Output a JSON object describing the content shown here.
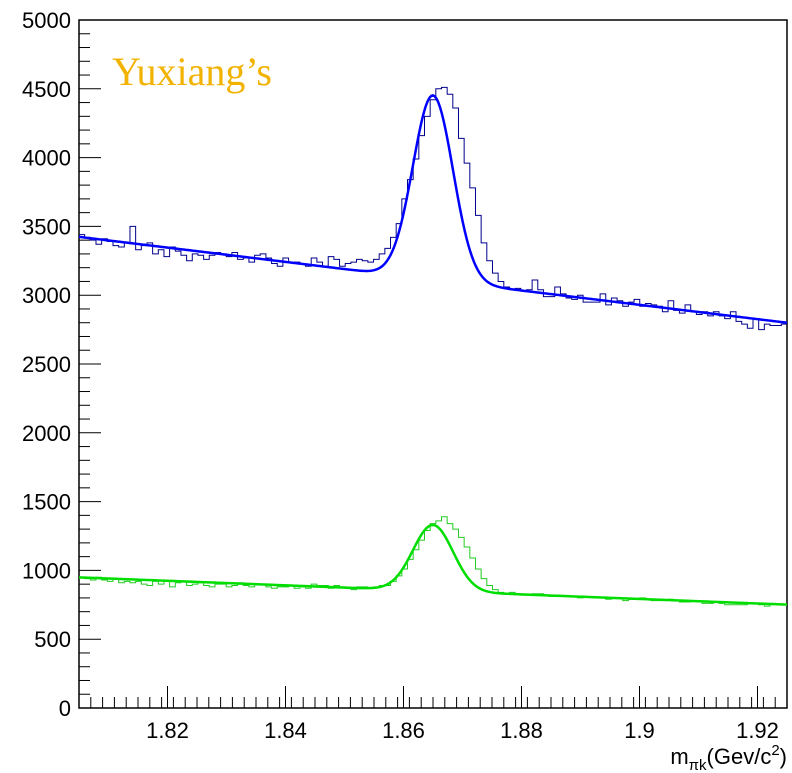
{
  "chart_data": {
    "type": "line",
    "watermark": "Yuxiang’s",
    "xlabel": {
      "main": "m",
      "sub": "πk",
      "unit_pre": "(Gev/c",
      "unit_sup": "2",
      "unit_post": ")"
    },
    "ylabel": "",
    "xlim": [
      1.805,
      1.925
    ],
    "ylim": [
      0,
      5000
    ],
    "x_ticks": [
      1.82,
      1.84,
      1.86,
      1.88,
      1.9,
      1.92
    ],
    "x_tick_labels": [
      "1.82",
      "1.84",
      "1.86",
      "1.88",
      "1.9",
      "1.92"
    ],
    "y_ticks": [
      0,
      500,
      1000,
      1500,
      2000,
      2500,
      3000,
      3500,
      4000,
      4500,
      5000
    ],
    "y_tick_labels": [
      "0",
      "500",
      "1000",
      "1500",
      "2000",
      "2500",
      "3000",
      "3500",
      "4000",
      "4500",
      "5000"
    ],
    "grid": false,
    "series": [
      {
        "color": "#0000ff",
        "hist_color": "#00008b",
        "fit": {
          "bg_a": 3190,
          "bg_b": -5200,
          "peak_amp": 1340,
          "mean": 1.865,
          "sigma": 0.0034
        },
        "hist_values": [
          3440,
          3420,
          3400,
          3370,
          3410,
          3390,
          3360,
          3350,
          3380,
          3500,
          3330,
          3360,
          3380,
          3300,
          3330,
          3280,
          3350,
          3320,
          3290,
          3250,
          3300,
          3290,
          3260,
          3290,
          3310,
          3300,
          3280,
          3310,
          3260,
          3270,
          3240,
          3290,
          3300,
          3270,
          3230,
          3210,
          3270,
          3240,
          3240,
          3230,
          3210,
          3270,
          3240,
          3210,
          3280,
          3260,
          3210,
          3230,
          3240,
          3260,
          3250,
          3240,
          3260,
          3300,
          3340,
          3420,
          3520,
          3700,
          3840,
          3990,
          4160,
          4300,
          4420,
          4500,
          4510,
          4460,
          4360,
          4140,
          3960,
          3780,
          3580,
          3380,
          3250,
          3160,
          3100,
          3060,
          3040,
          3050,
          3030,
          3040,
          3110,
          3040,
          2990,
          2990,
          3060,
          3010,
          2980,
          2970,
          3000,
          2950,
          2950,
          2950,
          3010,
          2930,
          2980,
          2960,
          2920,
          2950,
          2970,
          2920,
          2940,
          2930,
          2920,
          2880,
          2960,
          2890,
          2870,
          2930,
          2880,
          2860,
          2880,
          2850,
          2880,
          2850,
          2830,
          2880,
          2810,
          2790,
          2760,
          2830,
          2750,
          2790,
          2780,
          2780,
          2790
        ]
      },
      {
        "color": "#00dd00",
        "hist_color": "#22cc22",
        "fit": {
          "bg_a": 875,
          "bg_b": -1650,
          "peak_amp": 480,
          "mean": 1.865,
          "sigma": 0.0034
        },
        "hist_values": [
          950,
          940,
          930,
          950,
          930,
          920,
          940,
          910,
          920,
          910,
          920,
          900,
          890,
          920,
          900,
          920,
          880,
          910,
          920,
          890,
          900,
          910,
          890,
          880,
          900,
          900,
          880,
          890,
          910,
          890,
          880,
          900,
          900,
          880,
          870,
          880,
          880,
          890,
          870,
          880,
          870,
          900,
          890,
          890,
          870,
          890,
          880,
          870,
          860,
          880,
          880,
          870,
          880,
          890,
          890,
          920,
          960,
          1010,
          1080,
          1150,
          1220,
          1290,
          1340,
          1360,
          1390,
          1340,
          1300,
          1240,
          1170,
          1090,
          1010,
          940,
          890,
          860,
          840,
          830,
          840,
          830,
          820,
          820,
          830,
          830,
          820,
          810,
          820,
          810,
          810,
          810,
          800,
          810,
          810,
          800,
          800,
          790,
          800,
          800,
          780,
          790,
          790,
          800,
          790,
          780,
          780,
          780,
          790,
          780,
          770,
          770,
          780,
          770,
          760,
          760,
          770,
          760,
          750,
          750,
          750,
          750,
          760,
          760,
          750,
          740,
          760,
          750,
          750
        ]
      }
    ]
  }
}
